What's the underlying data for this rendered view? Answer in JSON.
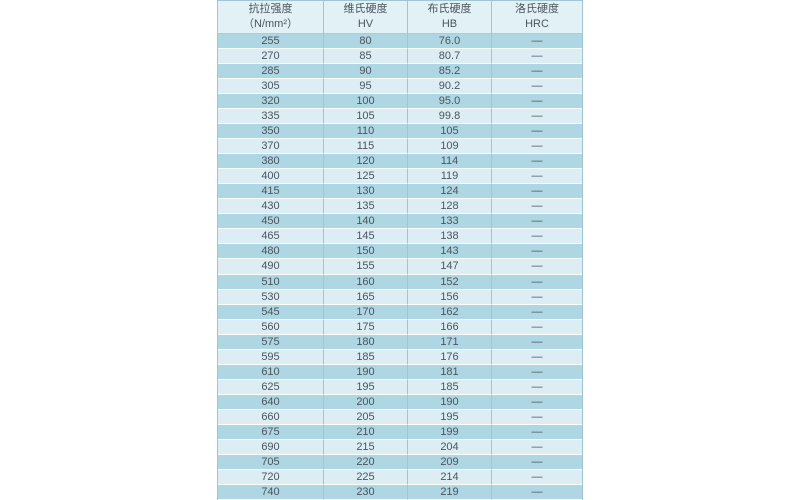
{
  "colors": {
    "page_background": "#ffffff",
    "header_background": "#e2f1f6",
    "row_dark": "#aed6e3",
    "row_light": "#dcedf4",
    "grid_line": "#a0c6d5",
    "row_separator": "#ffffff",
    "text": "#4b555d"
  },
  "header": {
    "cols": [
      {
        "title": "抗拉强度",
        "subtitle": "（N/mm²）"
      },
      {
        "title": "维氏硬度",
        "subtitle": "HV"
      },
      {
        "title": "布氏硬度",
        "subtitle": "HB"
      },
      {
        "title": "洛氏硬度",
        "subtitle": "HRC"
      }
    ]
  },
  "chart_data": {
    "type": "table",
    "title": "",
    "columns": [
      "抗拉强度（N/mm²）",
      "维氏硬度 HV",
      "布氏硬度 HB",
      "洛氏硬度 HRC"
    ],
    "rows": [
      [
        "255",
        "80",
        "76.0",
        "—"
      ],
      [
        "270",
        "85",
        "80.7",
        "—"
      ],
      [
        "285",
        "90",
        "85.2",
        "—"
      ],
      [
        "305",
        "95",
        "90.2",
        "—"
      ],
      [
        "320",
        "100",
        "95.0",
        "—"
      ],
      [
        "335",
        "105",
        "99.8",
        "—"
      ],
      [
        "350",
        "110",
        "105",
        "—"
      ],
      [
        "370",
        "115",
        "109",
        "—"
      ],
      [
        "380",
        "120",
        "114",
        "—"
      ],
      [
        "400",
        "125",
        "119",
        "—"
      ],
      [
        "415",
        "130",
        "124",
        "—"
      ],
      [
        "430",
        "135",
        "128",
        "—"
      ],
      [
        "450",
        "140",
        "133",
        "—"
      ],
      [
        "465",
        "145",
        "138",
        "—"
      ],
      [
        "480",
        "150",
        "143",
        "—"
      ],
      [
        "490",
        "155",
        "147",
        "—"
      ],
      [
        "510",
        "160",
        "152",
        "—"
      ],
      [
        "530",
        "165",
        "156",
        "—"
      ],
      [
        "545",
        "170",
        "162",
        "—"
      ],
      [
        "560",
        "175",
        "166",
        "—"
      ],
      [
        "575",
        "180",
        "171",
        "—"
      ],
      [
        "595",
        "185",
        "176",
        "—"
      ],
      [
        "610",
        "190",
        "181",
        "—"
      ],
      [
        "625",
        "195",
        "185",
        "—"
      ],
      [
        "640",
        "200",
        "190",
        "—"
      ],
      [
        "660",
        "205",
        "195",
        "—"
      ],
      [
        "675",
        "210",
        "199",
        "—"
      ],
      [
        "690",
        "215",
        "204",
        "—"
      ],
      [
        "705",
        "220",
        "209",
        "—"
      ],
      [
        "720",
        "225",
        "214",
        "—"
      ],
      [
        "740",
        "230",
        "219",
        "—"
      ]
    ]
  }
}
